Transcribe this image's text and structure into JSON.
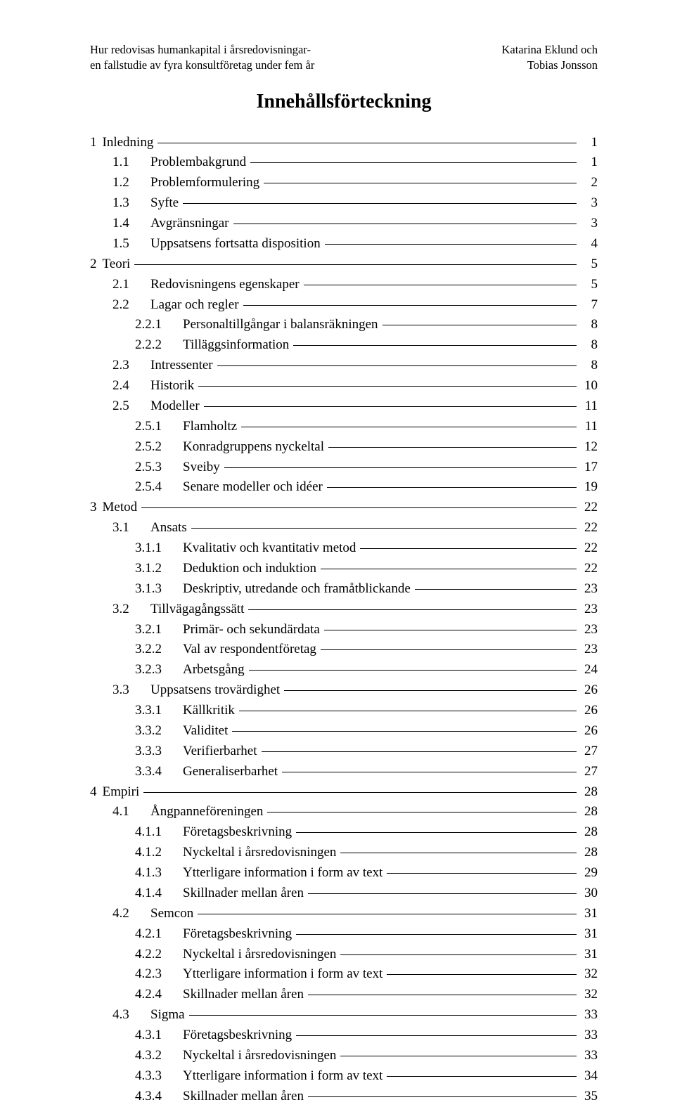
{
  "header": {
    "left_line1": "Hur redovisas humankapital i årsredovisningar-",
    "left_line2": "en fallstudie av fyra konsultföretag under fem år",
    "right_line1": "Katarina Eklund och",
    "right_line2": "Tobias Jonsson"
  },
  "title": "Innehållsförteckning",
  "toc": [
    {
      "level": 1,
      "num": "1",
      "label": "Inledning",
      "page": "1"
    },
    {
      "level": 2,
      "num": "1.1",
      "label": "Problembakgrund",
      "page": "1"
    },
    {
      "level": 2,
      "num": "1.2",
      "label": "Problemformulering",
      "page": "2"
    },
    {
      "level": 2,
      "num": "1.3",
      "label": "Syfte",
      "page": "3"
    },
    {
      "level": 2,
      "num": "1.4",
      "label": "Avgränsningar",
      "page": "3"
    },
    {
      "level": 2,
      "num": "1.5",
      "label": "Uppsatsens fortsatta disposition",
      "page": "4"
    },
    {
      "level": 1,
      "num": "2",
      "label": "Teori",
      "page": "5"
    },
    {
      "level": 2,
      "num": "2.1",
      "label": "Redovisningens egenskaper",
      "page": "5"
    },
    {
      "level": 2,
      "num": "2.2",
      "label": "Lagar och regler",
      "page": "7"
    },
    {
      "level": 3,
      "num": "2.2.1",
      "label": "Personaltillgångar i balansräkningen",
      "page": "8"
    },
    {
      "level": 3,
      "num": "2.2.2",
      "label": "Tilläggsinformation",
      "page": "8"
    },
    {
      "level": 2,
      "num": "2.3",
      "label": "Intressenter",
      "page": "8"
    },
    {
      "level": 2,
      "num": "2.4",
      "label": "Historik",
      "page": "10"
    },
    {
      "level": 2,
      "num": "2.5",
      "label": "Modeller",
      "page": "11"
    },
    {
      "level": 3,
      "num": "2.5.1",
      "label": "Flamholtz",
      "page": "11"
    },
    {
      "level": 3,
      "num": "2.5.2",
      "label": "Konradgruppens nyckeltal",
      "page": "12"
    },
    {
      "level": 3,
      "num": "2.5.3",
      "label": "Sveiby",
      "page": "17"
    },
    {
      "level": 3,
      "num": "2.5.4",
      "label": "Senare modeller och idéer",
      "page": "19"
    },
    {
      "level": 1,
      "num": "3",
      "label": "Metod",
      "page": "22"
    },
    {
      "level": 2,
      "num": "3.1",
      "label": "Ansats",
      "page": "22"
    },
    {
      "level": 3,
      "num": "3.1.1",
      "label": "Kvalitativ och kvantitativ metod",
      "page": "22"
    },
    {
      "level": 3,
      "num": "3.1.2",
      "label": "Deduktion och induktion",
      "page": "22"
    },
    {
      "level": 3,
      "num": "3.1.3",
      "label": "Deskriptiv, utredande och framåtblickande",
      "page": "23"
    },
    {
      "level": 2,
      "num": "3.2",
      "label": "Tillvägagångssätt",
      "page": "23"
    },
    {
      "level": 3,
      "num": "3.2.1",
      "label": "Primär- och sekundärdata",
      "page": "23"
    },
    {
      "level": 3,
      "num": "3.2.2",
      "label": "Val av respondentföretag",
      "page": "23"
    },
    {
      "level": 3,
      "num": "3.2.3",
      "label": "Arbetsgång",
      "page": "24"
    },
    {
      "level": 2,
      "num": "3.3",
      "label": "Uppsatsens trovärdighet",
      "page": "26"
    },
    {
      "level": 3,
      "num": "3.3.1",
      "label": "Källkritik",
      "page": "26"
    },
    {
      "level": 3,
      "num": "3.3.2",
      "label": "Validitet",
      "page": "26"
    },
    {
      "level": 3,
      "num": "3.3.3",
      "label": "Verifierbarhet",
      "page": "27"
    },
    {
      "level": 3,
      "num": "3.3.4",
      "label": "Generaliserbarhet",
      "page": "27"
    },
    {
      "level": 1,
      "num": "4",
      "label": "Empiri",
      "page": "28"
    },
    {
      "level": 2,
      "num": "4.1",
      "label": "Ångpanneföreningen",
      "page": "28"
    },
    {
      "level": 3,
      "num": "4.1.1",
      "label": "Företagsbeskrivning",
      "page": "28"
    },
    {
      "level": 3,
      "num": "4.1.2",
      "label": "Nyckeltal i årsredovisningen",
      "page": "28"
    },
    {
      "level": 3,
      "num": "4.1.3",
      "label": "Ytterligare information i form av text",
      "page": "29"
    },
    {
      "level": 3,
      "num": "4.1.4",
      "label": "Skillnader mellan åren",
      "page": "30"
    },
    {
      "level": 2,
      "num": "4.2",
      "label": "Semcon",
      "page": "31"
    },
    {
      "level": 3,
      "num": "4.2.1",
      "label": "Företagsbeskrivning",
      "page": "31"
    },
    {
      "level": 3,
      "num": "4.2.2",
      "label": "Nyckeltal i årsredovisningen",
      "page": "31"
    },
    {
      "level": 3,
      "num": "4.2.3",
      "label": "Ytterligare information i form av text",
      "page": "32"
    },
    {
      "level": 3,
      "num": "4.2.4",
      "label": "Skillnader mellan åren",
      "page": "32"
    },
    {
      "level": 2,
      "num": "4.3",
      "label": "Sigma",
      "page": "33"
    },
    {
      "level": 3,
      "num": "4.3.1",
      "label": "Företagsbeskrivning",
      "page": "33"
    },
    {
      "level": 3,
      "num": "4.3.2",
      "label": "Nyckeltal i årsredovisningen",
      "page": "33"
    },
    {
      "level": 3,
      "num": "4.3.3",
      "label": "Ytterligare information i form av text",
      "page": "34"
    },
    {
      "level": 3,
      "num": "4.3.4",
      "label": "Skillnader mellan åren",
      "page": "35"
    }
  ]
}
